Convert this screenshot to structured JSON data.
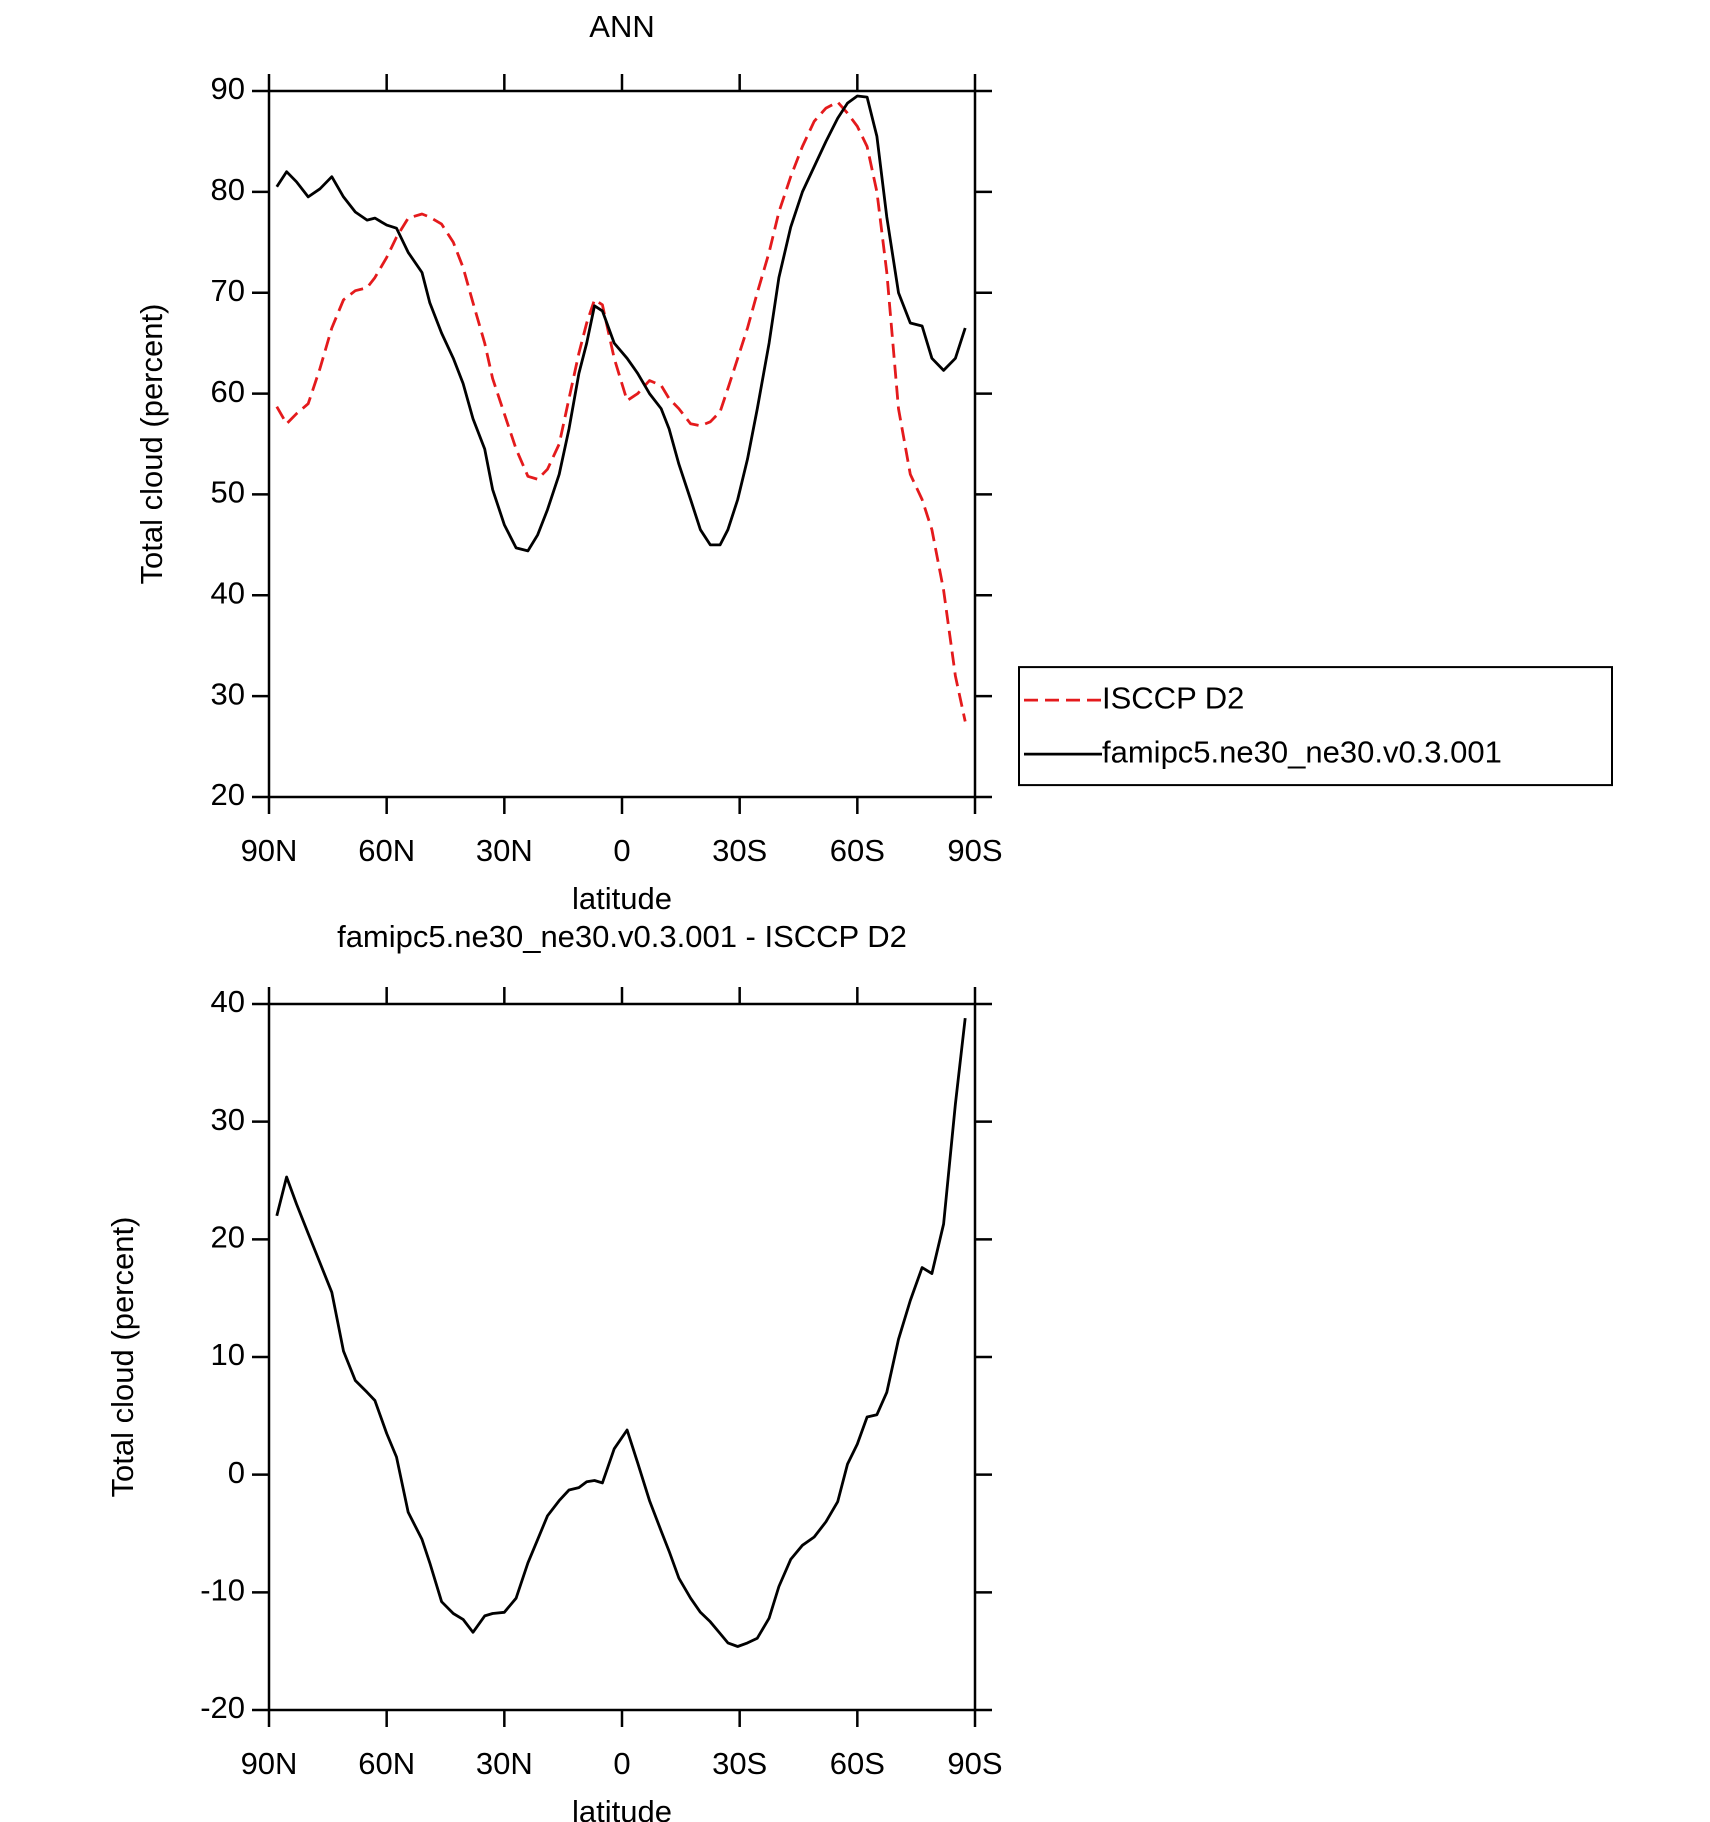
{
  "chart_data": [
    {
      "type": "line",
      "title": "ANN",
      "xlabel": "latitude",
      "ylabel": "Total cloud (percent)",
      "x": [
        88,
        85.5,
        83,
        80,
        77,
        74,
        71,
        68,
        65,
        63,
        60,
        57.5,
        54.5,
        51,
        49,
        46,
        43,
        40.5,
        38,
        35,
        33,
        30,
        27,
        24,
        21.5,
        19,
        16,
        13.5,
        11,
        9,
        7,
        5,
        2,
        -1.3,
        -4,
        -7,
        -10,
        -12,
        -14.5,
        -17.5,
        -20,
        -22.5,
        -25,
        -27,
        -29.5,
        -32,
        -34.5,
        -37.5,
        -40,
        -43,
        -46,
        -49,
        -52,
        -55,
        -57.5,
        -60,
        -62.5,
        -65,
        -67.5,
        -70.5,
        -73.5,
        -76.5,
        -79,
        -82,
        -85,
        -87.5
      ],
      "series": [
        {
          "name": "ISCCP D2",
          "color": "#e41a1c",
          "style": "dashed",
          "values": [
            58.7,
            57,
            58,
            59,
            62.5,
            66.5,
            69.3,
            70.2,
            70.5,
            71.5,
            73.5,
            75.5,
            77.4,
            77.8,
            77.5,
            76.8,
            75,
            72.5,
            69,
            65,
            61.5,
            58,
            54.5,
            51.8,
            51.5,
            52.5,
            55,
            59.5,
            64,
            67,
            69.3,
            68.8,
            63.5,
            59.3,
            60,
            61.3,
            60.8,
            59.5,
            58.5,
            57,
            56.8,
            57.2,
            58.2,
            60.5,
            63.5,
            66.5,
            70,
            74,
            78,
            81.5,
            84.5,
            87,
            88.3,
            88.9,
            87.8,
            86.5,
            84.5,
            80,
            72,
            58.5,
            52,
            49.5,
            46.5,
            40.5,
            32,
            27.5
          ]
        },
        {
          "name": "famipc5.ne30_ne30.v0.3.001",
          "color": "#000000",
          "style": "solid",
          "values": [
            80.5,
            82,
            81,
            79.5,
            80.3,
            81.5,
            79.5,
            78,
            77.2,
            77.4,
            76.7,
            76.4,
            74,
            72,
            69,
            66,
            63.5,
            61,
            57.5,
            54.5,
            50.5,
            47,
            44.7,
            44.4,
            46,
            48.5,
            52,
            56.5,
            62,
            65,
            68.7,
            68.2,
            65,
            63.5,
            62,
            60,
            58.5,
            56.5,
            53,
            49.5,
            46.5,
            45,
            45,
            46.5,
            49.5,
            53.5,
            58.5,
            65,
            71.5,
            76.5,
            80,
            82.5,
            85,
            87.3,
            88.8,
            89.5,
            89.4,
            85.5,
            77.5,
            70,
            67,
            66.7,
            63.5,
            62.3,
            63.5,
            66.5
          ]
        }
      ],
      "xlim": [
        90,
        -90
      ],
      "xticks": [
        {
          "value": 90,
          "label": "90N"
        },
        {
          "value": 60,
          "label": "60N"
        },
        {
          "value": 30,
          "label": "30N"
        },
        0,
        {
          "value": -30,
          "label": "30S"
        },
        {
          "value": -60,
          "label": "60S"
        },
        {
          "value": -90,
          "label": "90S"
        }
      ],
      "ylim": [
        20,
        90
      ],
      "yticks": [
        20,
        30,
        40,
        50,
        60,
        70,
        80,
        90
      ],
      "legend": "right"
    },
    {
      "type": "line",
      "title": "famipc5.ne30_ne30.v0.3.001 - ISCCP D2",
      "xlabel": "latitude",
      "ylabel": "Total cloud (percent)",
      "x": [
        88,
        85.5,
        83,
        80,
        77,
        74,
        71,
        68,
        65,
        63,
        60,
        57.5,
        54.5,
        51,
        49,
        46,
        43,
        40.5,
        38,
        35,
        33,
        30,
        27,
        24,
        21.5,
        19,
        16,
        13.5,
        11,
        9,
        7,
        5,
        2,
        -1.3,
        -4,
        -7,
        -10,
        -12,
        -14.5,
        -17.5,
        -20,
        -22.5,
        -25,
        -27,
        -29.5,
        -32,
        -34.5,
        -37.5,
        -40,
        -43,
        -46,
        -49,
        -52,
        -55,
        -57.5,
        -60,
        -62.5,
        -65,
        -67.5,
        -70.5,
        -73.5,
        -76.5,
        -79,
        -82,
        -85,
        -87.5
      ],
      "values": [
        22,
        25.3,
        23,
        20.5,
        18,
        15.5,
        10.5,
        8,
        7,
        6.3,
        3.5,
        1.5,
        -3.2,
        -5.5,
        -7.5,
        -10.8,
        -11.8,
        -12.3,
        -13.4,
        -12,
        -11.8,
        -11.7,
        -10.5,
        -7.5,
        -5.5,
        -3.5,
        -2.2,
        -1.3,
        -1.1,
        -0.6,
        -0.5,
        -0.7,
        2.2,
        3.8,
        1,
        -2.2,
        -4.8,
        -6.5,
        -8.8,
        -10.5,
        -11.7,
        -12.5,
        -13.5,
        -14.3,
        -14.6,
        -14.3,
        -13.9,
        -12.2,
        -9.5,
        -7.2,
        -6,
        -5.3,
        -4,
        -2.3,
        0.9,
        2.6,
        4.9,
        5.1,
        7,
        11.5,
        14.8,
        17.6,
        17.1,
        21.3,
        31.5,
        38.8
      ],
      "color": "#000000",
      "xlim": [
        90,
        -90
      ],
      "xticks": [
        {
          "value": 90,
          "label": "90N"
        },
        {
          "value": 60,
          "label": "60N"
        },
        {
          "value": 30,
          "label": "30N"
        },
        0,
        {
          "value": -30,
          "label": "30S"
        },
        {
          "value": -60,
          "label": "60S"
        },
        {
          "value": -90,
          "label": "90S"
        }
      ],
      "ylim": [
        -20,
        40
      ],
      "yticks": [
        -20,
        -10,
        0,
        10,
        20,
        30,
        40
      ]
    }
  ]
}
